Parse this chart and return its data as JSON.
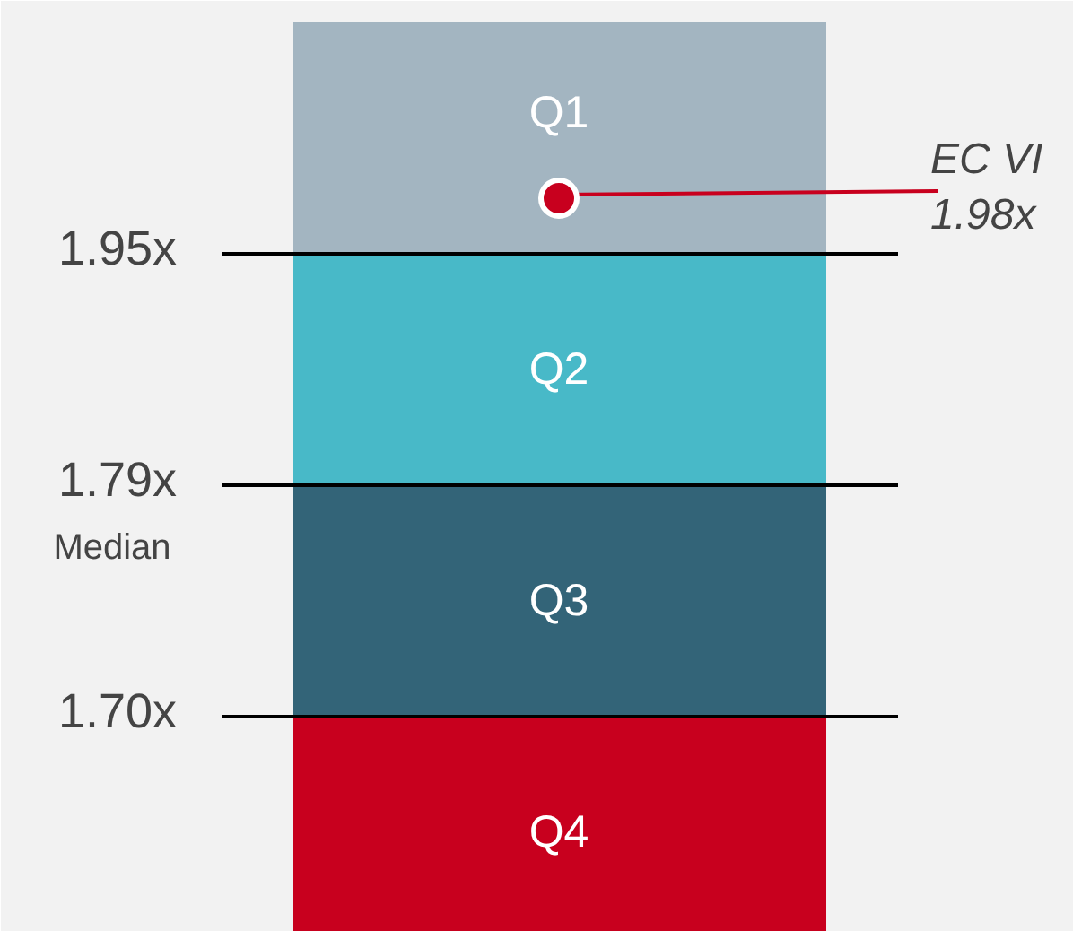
{
  "chart_data": {
    "type": "other",
    "categories": [
      "Q1",
      "Q2",
      "Q3",
      "Q4"
    ],
    "colors": [
      "#a3b5c1",
      "#48b9c8",
      "#336478",
      "#c8001e"
    ],
    "series": [
      {
        "values": [
          1.95,
          1.79,
          1.7,
          null
        ],
        "value_labels": [
          "1.95x",
          "1.79x",
          "1.70x",
          null
        ]
      },
      {
        "type": "scatter",
        "color": "#c8001e",
        "values": [
          1.98,
          null,
          null,
          null
        ],
        "value_labels": [
          "1.98x",
          null,
          null,
          null
        ]
      }
    ],
    "annotations": [
      "Median",
      "EC VI"
    ]
  }
}
